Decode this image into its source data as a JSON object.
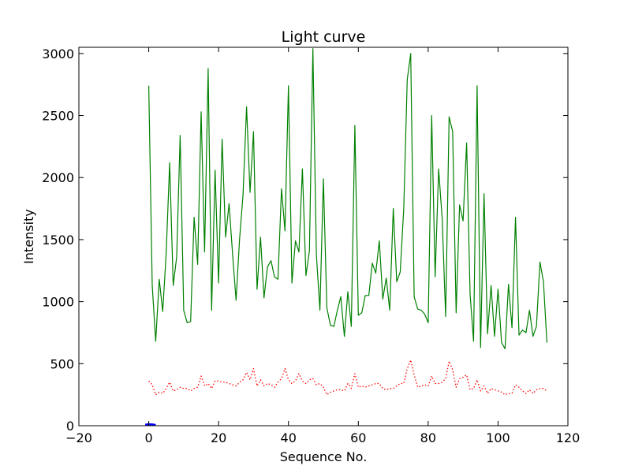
{
  "chart_data": {
    "type": "line",
    "title": "Light curve",
    "xlabel": "Sequence No.",
    "ylabel": "Intensity",
    "xlim": [
      -20,
      120
    ],
    "ylim": [
      0,
      3050
    ],
    "xticks": [
      -20,
      0,
      20,
      40,
      60,
      80,
      100,
      120
    ],
    "xtick_labels": [
      "−20",
      "0",
      "20",
      "40",
      "60",
      "80",
      "100",
      "120"
    ],
    "yticks": [
      0,
      500,
      1000,
      1500,
      2000,
      2500,
      3000
    ],
    "ytick_labels": [
      "0",
      "500",
      "1000",
      "1500",
      "2000",
      "2500",
      "3000"
    ],
    "grid": false,
    "series": [
      {
        "color": "#008000",
        "style": "solid",
        "x_start": 0,
        "x_step": 1,
        "values": [
          2740,
          1130,
          680,
          1180,
          920,
          1390,
          2120,
          1130,
          1360,
          2340,
          930,
          830,
          840,
          1680,
          1300,
          2530,
          1400,
          2880,
          930,
          2060,
          1150,
          2310,
          1520,
          1790,
          1380,
          1010,
          1500,
          1860,
          2570,
          1880,
          2370,
          1100,
          1520,
          1030,
          1280,
          1330,
          1200,
          1180,
          1910,
          1570,
          2740,
          1150,
          1490,
          1400,
          2070,
          1210,
          1410,
          3040,
          1380,
          930,
          1990,
          950,
          810,
          800,
          930,
          1040,
          720,
          1080,
          800,
          2420,
          890,
          910,
          1050,
          1050,
          1310,
          1230,
          1490,
          1020,
          1190,
          930,
          1750,
          1160,
          1240,
          1750,
          2790,
          3000,
          1040,
          940,
          930,
          900,
          830,
          2500,
          1200,
          2070,
          1670,
          880,
          2490,
          2370,
          910,
          1780,
          1650,
          2280,
          1060,
          680,
          2740,
          630,
          1870,
          740,
          1130,
          720,
          1100,
          670,
          620,
          1140,
          790,
          1680,
          730,
          770,
          750,
          930,
          720,
          800,
          1320,
          1160,
          670
        ]
      },
      {
        "color": "#ff0000",
        "style": "dotted",
        "x_start": 0,
        "x_step": 1,
        "values": [
          360,
          330,
          250,
          270,
          260,
          300,
          350,
          280,
          290,
          310,
          300,
          300,
          280,
          300,
          310,
          400,
          320,
          340,
          300,
          360,
          360,
          350,
          350,
          340,
          330,
          320,
          350,
          370,
          430,
          370,
          460,
          320,
          370,
          320,
          340,
          330,
          310,
          350,
          380,
          460,
          370,
          340,
          360,
          420,
          360,
          340,
          370,
          380,
          330,
          340,
          310,
          250,
          270,
          280,
          290,
          290,
          280,
          340,
          300,
          420,
          310,
          320,
          310,
          320,
          330,
          340,
          340,
          300,
          290,
          300,
          300,
          320,
          340,
          340,
          460,
          530,
          410,
          310,
          320,
          330,
          320,
          400,
          340,
          340,
          350,
          380,
          520,
          450,
          310,
          380,
          390,
          410,
          290,
          300,
          370,
          280,
          320,
          260,
          300,
          290,
          280,
          270,
          250,
          260,
          260,
          330,
          310,
          280,
          260,
          290,
          260,
          290,
          300,
          300,
          280
        ]
      },
      {
        "color": "#0000ff",
        "style": "solid",
        "x": [
          -1,
          0,
          1,
          2
        ],
        "values": [
          8,
          12,
          10,
          6
        ]
      }
    ]
  }
}
